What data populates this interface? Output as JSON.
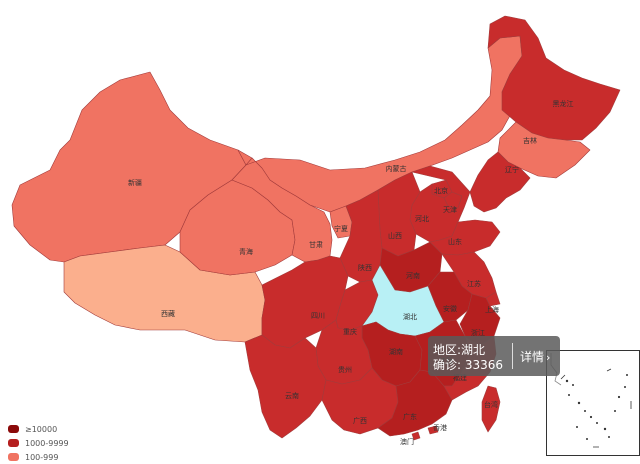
{
  "colors": {
    "level_10000": "#8b0a0a",
    "level_1000": "#b51f1f",
    "level_500": "#c82c2c",
    "level_100": "#f07362",
    "level_10": "#fbaf8d",
    "hubei": "#b8f0f5",
    "border": "#a23b3b"
  },
  "legend": [
    {
      "label": "≥10000",
      "color": "#8b0a0a"
    },
    {
      "label": "1000-9999",
      "color": "#b51f1f"
    },
    {
      "label": "100-999",
      "color": "#f07362"
    }
  ],
  "provinces": [
    {
      "name": "新疆",
      "level": "level_100"
    },
    {
      "name": "西藏",
      "level": "level_10"
    },
    {
      "name": "青海",
      "level": "level_100"
    },
    {
      "name": "甘肃",
      "level": "level_100"
    },
    {
      "name": "内蒙古",
      "level": "level_100"
    },
    {
      "name": "宁夏",
      "level": "level_100"
    },
    {
      "name": "黑龙江",
      "level": "level_500"
    },
    {
      "name": "吉林",
      "level": "level_100"
    },
    {
      "name": "辽宁",
      "level": "level_500"
    },
    {
      "name": "北京",
      "level": "level_500"
    },
    {
      "name": "天津",
      "level": "level_500"
    },
    {
      "name": "河北",
      "level": "level_500"
    },
    {
      "name": "山西",
      "level": "level_500"
    },
    {
      "name": "山东",
      "level": "level_500"
    },
    {
      "name": "陕西",
      "level": "level_500"
    },
    {
      "name": "河南",
      "level": "level_1000"
    },
    {
      "name": "江苏",
      "level": "level_500"
    },
    {
      "name": "安徽",
      "level": "level_1000"
    },
    {
      "name": "上海",
      "level": "level_500"
    },
    {
      "name": "浙江",
      "level": "level_1000"
    },
    {
      "name": "四川",
      "level": "level_500"
    },
    {
      "name": "重庆",
      "level": "level_500"
    },
    {
      "name": "湖北",
      "level": "hubei"
    },
    {
      "name": "湖南",
      "level": "level_1000"
    },
    {
      "name": "贵州",
      "level": "level_500"
    },
    {
      "name": "云南",
      "level": "level_500"
    },
    {
      "name": "广西",
      "level": "level_500"
    },
    {
      "name": "广东",
      "level": "level_1000"
    },
    {
      "name": "江西",
      "level": "level_1000"
    },
    {
      "name": "福建",
      "level": "level_500"
    },
    {
      "name": "台湾",
      "level": "level_500"
    },
    {
      "name": "香港",
      "level": "level_500"
    },
    {
      "name": "澳门",
      "level": "level_500"
    }
  ],
  "tooltip": {
    "region_label": "地区:",
    "region_value": "湖北",
    "confirmed_label": "确诊:",
    "confirmed_value": "33366",
    "detail": "详情",
    "chevron": "›"
  }
}
